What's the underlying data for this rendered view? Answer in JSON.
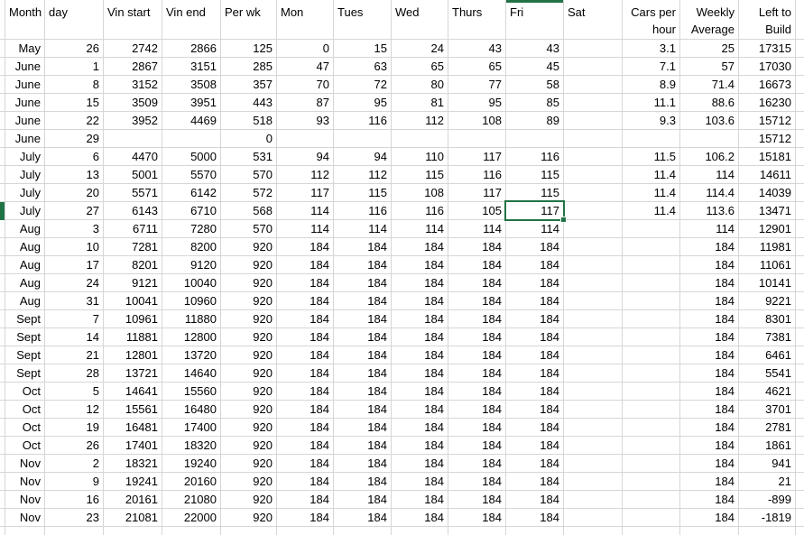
{
  "colors": {
    "selection_accent": "#217346",
    "gridline": "#d6d6d6",
    "text": "#000000",
    "background": "#ffffff"
  },
  "table": {
    "headers": [
      {
        "key": "month",
        "label": "Month",
        "lines": [
          "Month"
        ],
        "align": "left"
      },
      {
        "key": "day",
        "label": "day",
        "lines": [
          "day"
        ],
        "align": "left"
      },
      {
        "key": "vin_start",
        "label": "Vin start",
        "lines": [
          "Vin start"
        ],
        "align": "left"
      },
      {
        "key": "vin_end",
        "label": "Vin end",
        "lines": [
          "Vin end"
        ],
        "align": "left"
      },
      {
        "key": "per_wk",
        "label": "Per wk",
        "lines": [
          "Per wk"
        ],
        "align": "left"
      },
      {
        "key": "mon",
        "label": "Mon",
        "lines": [
          "Mon"
        ],
        "align": "left"
      },
      {
        "key": "tues",
        "label": "Tues",
        "lines": [
          "Tues"
        ],
        "align": "left"
      },
      {
        "key": "wed",
        "label": "Wed",
        "lines": [
          "Wed"
        ],
        "align": "left"
      },
      {
        "key": "thurs",
        "label": "Thurs",
        "lines": [
          "Thurs"
        ],
        "align": "left"
      },
      {
        "key": "fri",
        "label": "Fri",
        "lines": [
          "Fri"
        ],
        "align": "left"
      },
      {
        "key": "sat",
        "label": "Sat",
        "lines": [
          "Sat"
        ],
        "align": "left"
      },
      {
        "key": "cars_per_hour",
        "label": "Cars per hour",
        "lines": [
          "Cars per",
          "hour"
        ],
        "align": "right"
      },
      {
        "key": "weekly_average",
        "label": "Weekly Average",
        "lines": [
          "Weekly",
          "Average"
        ],
        "align": "right"
      },
      {
        "key": "left_to_build",
        "label": "Left to Build",
        "lines": [
          "Left to",
          "Build"
        ],
        "align": "right"
      }
    ],
    "rows": [
      [
        "May",
        26,
        2742,
        2866,
        125,
        0,
        15,
        24,
        43,
        43,
        "",
        3.1,
        25,
        17315
      ],
      [
        "June",
        1,
        2867,
        3151,
        285,
        47,
        63,
        65,
        65,
        45,
        "",
        7.1,
        57,
        17030
      ],
      [
        "June",
        8,
        3152,
        3508,
        357,
        70,
        72,
        80,
        77,
        58,
        "",
        8.9,
        71.4,
        16673
      ],
      [
        "June",
        15,
        3509,
        3951,
        443,
        87,
        95,
        81,
        95,
        85,
        "",
        11.1,
        88.6,
        16230
      ],
      [
        "June",
        22,
        3952,
        4469,
        518,
        93,
        116,
        112,
        108,
        89,
        "",
        9.3,
        103.6,
        15712
      ],
      [
        "June",
        29,
        "",
        "",
        0,
        "",
        "",
        "",
        "",
        "",
        "",
        "",
        "",
        15712
      ],
      [
        "July",
        6,
        4470,
        5000,
        531,
        94,
        94,
        110,
        117,
        116,
        "",
        11.5,
        106.2,
        15181
      ],
      [
        "July",
        13,
        5001,
        5570,
        570,
        112,
        112,
        115,
        116,
        115,
        "",
        11.4,
        114,
        14611
      ],
      [
        "July",
        20,
        5571,
        6142,
        572,
        117,
        115,
        108,
        117,
        115,
        "",
        11.4,
        114.4,
        14039
      ],
      [
        "July",
        27,
        6143,
        6710,
        568,
        114,
        116,
        116,
        105,
        117,
        "",
        11.4,
        113.6,
        13471
      ],
      [
        "Aug",
        3,
        6711,
        7280,
        570,
        114,
        114,
        114,
        114,
        114,
        "",
        "",
        114,
        12901
      ],
      [
        "Aug",
        10,
        7281,
        8200,
        920,
        184,
        184,
        184,
        184,
        184,
        "",
        "",
        184,
        11981
      ],
      [
        "Aug",
        17,
        8201,
        9120,
        920,
        184,
        184,
        184,
        184,
        184,
        "",
        "",
        184,
        11061
      ],
      [
        "Aug",
        24,
        9121,
        10040,
        920,
        184,
        184,
        184,
        184,
        184,
        "",
        "",
        184,
        10141
      ],
      [
        "Aug",
        31,
        10041,
        10960,
        920,
        184,
        184,
        184,
        184,
        184,
        "",
        "",
        184,
        9221
      ],
      [
        "Sept",
        7,
        10961,
        11880,
        920,
        184,
        184,
        184,
        184,
        184,
        "",
        "",
        184,
        8301
      ],
      [
        "Sept",
        14,
        11881,
        12800,
        920,
        184,
        184,
        184,
        184,
        184,
        "",
        "",
        184,
        7381
      ],
      [
        "Sept",
        21,
        12801,
        13720,
        920,
        184,
        184,
        184,
        184,
        184,
        "",
        "",
        184,
        6461
      ],
      [
        "Sept",
        28,
        13721,
        14640,
        920,
        184,
        184,
        184,
        184,
        184,
        "",
        "",
        184,
        5541
      ],
      [
        "Oct",
        5,
        14641,
        15560,
        920,
        184,
        184,
        184,
        184,
        184,
        "",
        "",
        184,
        4621
      ],
      [
        "Oct",
        12,
        15561,
        16480,
        920,
        184,
        184,
        184,
        184,
        184,
        "",
        "",
        184,
        3701
      ],
      [
        "Oct",
        19,
        16481,
        17400,
        920,
        184,
        184,
        184,
        184,
        184,
        "",
        "",
        184,
        2781
      ],
      [
        "Oct",
        26,
        17401,
        18320,
        920,
        184,
        184,
        184,
        184,
        184,
        "",
        "",
        184,
        1861
      ],
      [
        "Nov",
        2,
        18321,
        19240,
        920,
        184,
        184,
        184,
        184,
        184,
        "",
        "",
        184,
        941
      ],
      [
        "Nov",
        9,
        19241,
        20160,
        920,
        184,
        184,
        184,
        184,
        184,
        "",
        "",
        184,
        21
      ],
      [
        "Nov",
        16,
        20161,
        21080,
        920,
        184,
        184,
        184,
        184,
        184,
        "",
        "",
        184,
        -899
      ],
      [
        "Nov",
        23,
        21081,
        22000,
        920,
        184,
        184,
        184,
        184,
        184,
        "",
        "",
        184,
        -1819
      ]
    ]
  },
  "selection": {
    "row_index": 9,
    "column_key": "fri",
    "month": "July",
    "day": 27,
    "value": 117
  }
}
